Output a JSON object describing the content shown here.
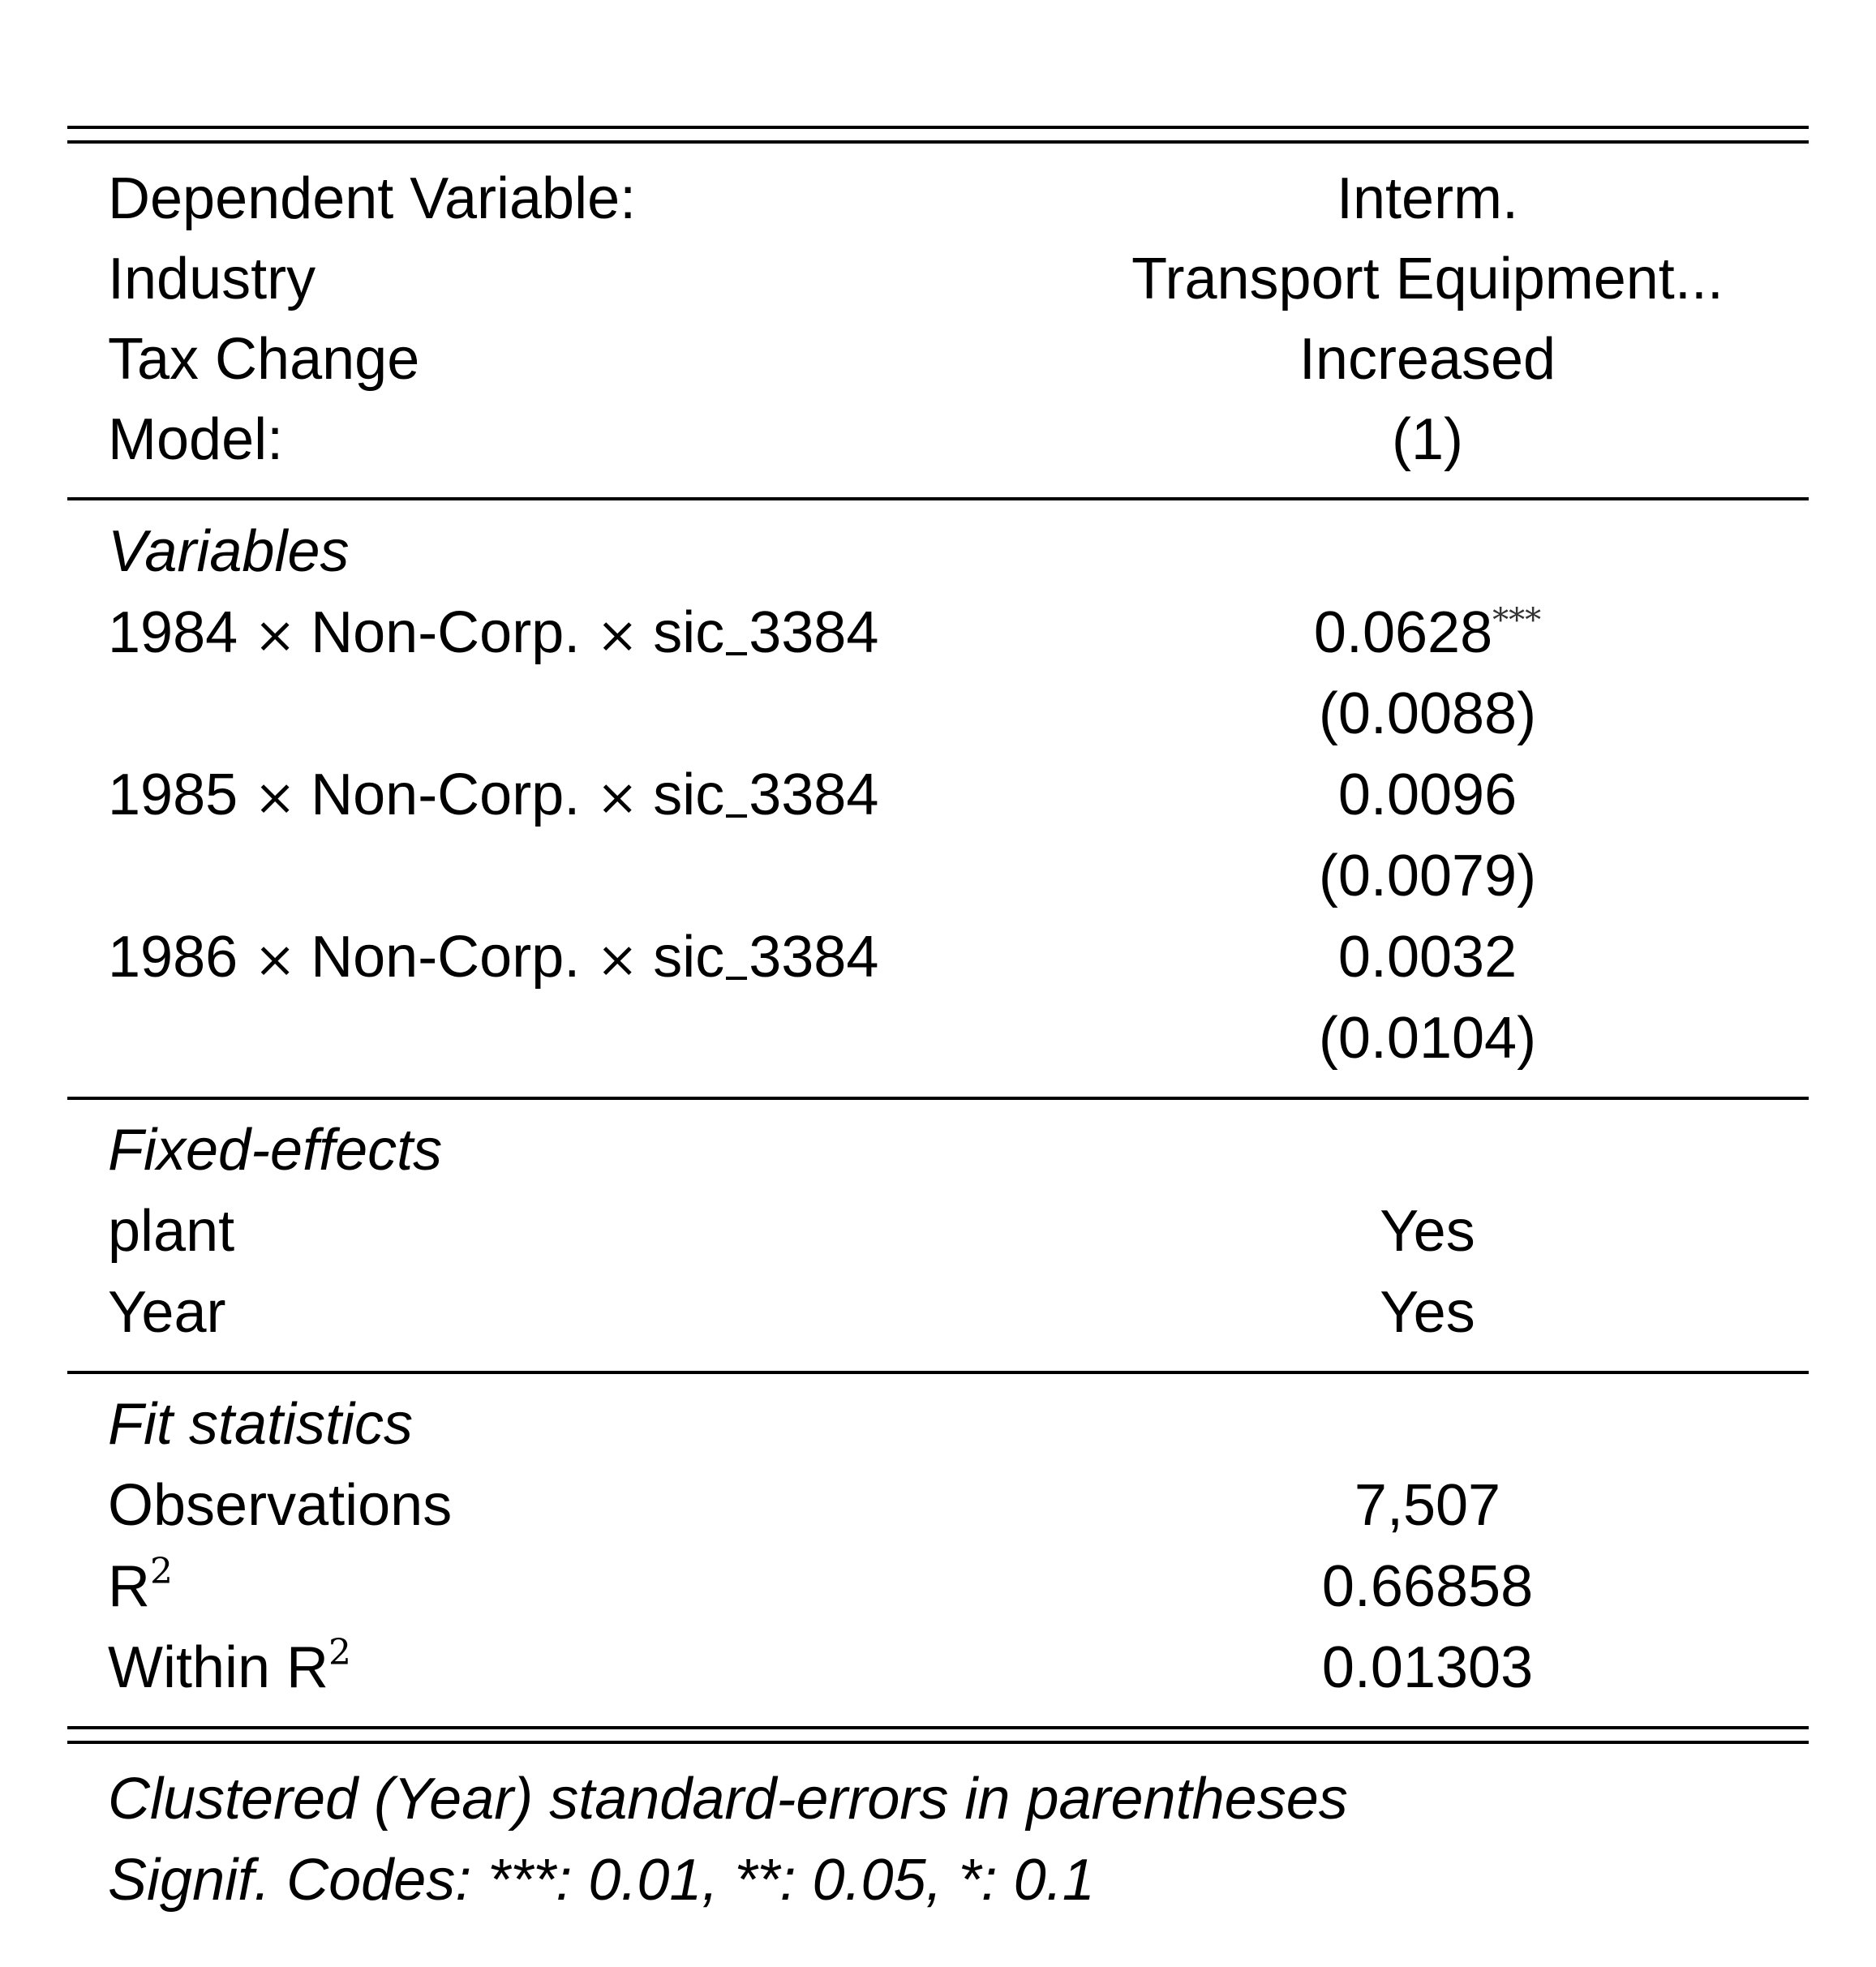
{
  "header": {
    "rows": [
      {
        "label": "Dependent Variable:",
        "value": "Interm."
      },
      {
        "label": "Industry",
        "value": "Transport Equipment..."
      },
      {
        "label": "Tax Change",
        "value": "Increased"
      },
      {
        "label": "Model:",
        "value": "(1)"
      }
    ]
  },
  "variables": {
    "heading": "Variables",
    "rows": [
      {
        "year": "1984",
        "mid": "Non-Corp.",
        "sic_prefix": "sic",
        "sic_code": "3384",
        "coef": "0.0628",
        "stars": "***",
        "se": "(0.0088)"
      },
      {
        "year": "1985",
        "mid": "Non-Corp.",
        "sic_prefix": "sic",
        "sic_code": "3384",
        "coef": "0.0096",
        "stars": "",
        "se": "(0.0079)"
      },
      {
        "year": "1986",
        "mid": "Non-Corp.",
        "sic_prefix": "sic",
        "sic_code": "3384",
        "coef": "0.0032",
        "stars": "",
        "se": "(0.0104)"
      }
    ]
  },
  "fixed_effects": {
    "heading": "Fixed-effects",
    "rows": [
      {
        "label": "plant",
        "value": "Yes"
      },
      {
        "label": "Year",
        "value": "Yes"
      }
    ]
  },
  "fit_statistics": {
    "heading": "Fit statistics",
    "observations": {
      "label": "Observations",
      "value": "7,507"
    },
    "r2": {
      "label": "R",
      "sup": "2",
      "value": "0.66858"
    },
    "within_r2": {
      "label": "Within R",
      "sup": "2",
      "value": "0.01303"
    }
  },
  "notes": {
    "line1": "Clustered (Year) standard-errors in parentheses",
    "line2": "Signif. Codes: ***: 0.01, **: 0.05, *: 0.1"
  }
}
